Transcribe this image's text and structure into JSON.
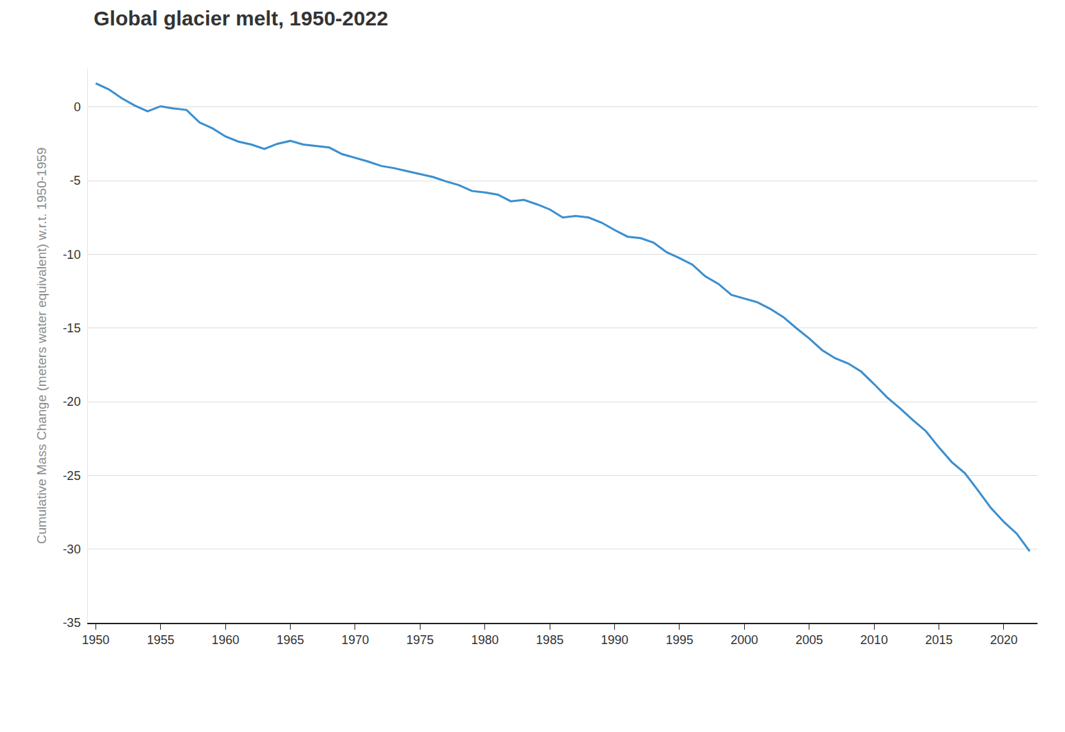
{
  "chart_data": {
    "type": "line",
    "title": "Global glacier melt, 1950-2022",
    "y_label": "Cumulative Mass Change (meters water equivalent) w.r.t. 1950-1959",
    "x": [
      1950,
      1951,
      1952,
      1953,
      1954,
      1955,
      1956,
      1957,
      1958,
      1959,
      1960,
      1961,
      1962,
      1963,
      1964,
      1965,
      1966,
      1967,
      1968,
      1969,
      1970,
      1971,
      1972,
      1973,
      1974,
      1975,
      1976,
      1977,
      1978,
      1979,
      1980,
      1981,
      1982,
      1983,
      1984,
      1985,
      1986,
      1987,
      1988,
      1989,
      1990,
      1991,
      1992,
      1993,
      1994,
      1995,
      1996,
      1997,
      1998,
      1999,
      2000,
      2001,
      2002,
      2003,
      2004,
      2005,
      2006,
      2007,
      2008,
      2009,
      2010,
      2011,
      2012,
      2013,
      2014,
      2015,
      2016,
      2017,
      2018,
      2019,
      2020,
      2021,
      2022
    ],
    "values": [
      1.6,
      1.2,
      0.6,
      0.1,
      -0.3,
      0.05,
      -0.1,
      -0.2,
      -1.05,
      -1.45,
      -2.0,
      -2.35,
      -2.55,
      -2.85,
      -2.5,
      -2.3,
      -2.55,
      -2.65,
      -2.75,
      -3.2,
      -3.45,
      -3.7,
      -4.0,
      -4.15,
      -4.35,
      -4.55,
      -4.75,
      -5.05,
      -5.3,
      -5.7,
      -5.8,
      -5.95,
      -6.4,
      -6.3,
      -6.6,
      -6.95,
      -7.5,
      -7.4,
      -7.5,
      -7.85,
      -8.35,
      -8.8,
      -8.9,
      -9.2,
      -9.85,
      -10.25,
      -10.7,
      -11.5,
      -12.0,
      -12.75,
      -13.0,
      -13.25,
      -13.7,
      -14.25,
      -15.0,
      -15.7,
      -16.5,
      -17.05,
      -17.4,
      -17.95,
      -18.8,
      -19.7,
      -20.45,
      -21.25,
      -22.0,
      -23.1,
      -24.1,
      -24.85,
      -26.0,
      -27.2,
      -28.15,
      -28.95,
      -30.15
    ],
    "color": "#3a8fd0",
    "xlim": [
      1949.4,
      2022.6
    ],
    "xticks": [
      1950,
      1955,
      1960,
      1965,
      1970,
      1975,
      1980,
      1985,
      1990,
      1995,
      2000,
      2005,
      2010,
      2015,
      2020
    ],
    "ylim": [
      -35,
      2.6
    ],
    "yticks": [
      -35,
      -30,
      -25,
      -20,
      -15,
      -10,
      -5,
      0
    ],
    "grid": true
  }
}
